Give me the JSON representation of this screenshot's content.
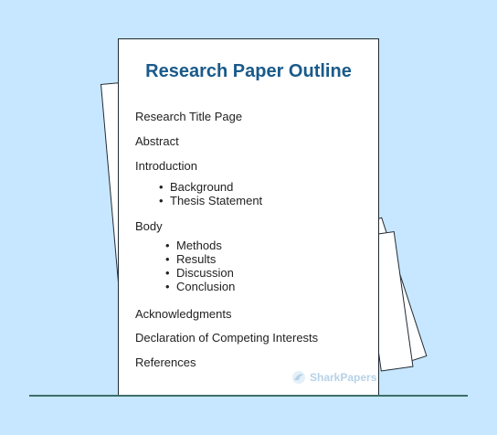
{
  "document": {
    "title": "Research Paper Outline",
    "sections": [
      {
        "label": "Research Title Page"
      },
      {
        "label": "Abstract"
      },
      {
        "label": "Introduction",
        "subitems": [
          "Background",
          "Thesis Statement"
        ]
      },
      {
        "label": "Body",
        "subitems": [
          "Methods",
          "Results",
          "Discussion",
          "Conclusion"
        ]
      },
      {
        "label": "Acknowledgments"
      },
      {
        "label": "Declaration of Competing Interests"
      },
      {
        "label": "References"
      }
    ]
  },
  "logo": {
    "text": "SharkPapers",
    "icon": "shark-fin-icon"
  },
  "colors": {
    "background": "#c6e7ff",
    "title": "#1a5a8a",
    "ground_line": "#3e6e68"
  }
}
